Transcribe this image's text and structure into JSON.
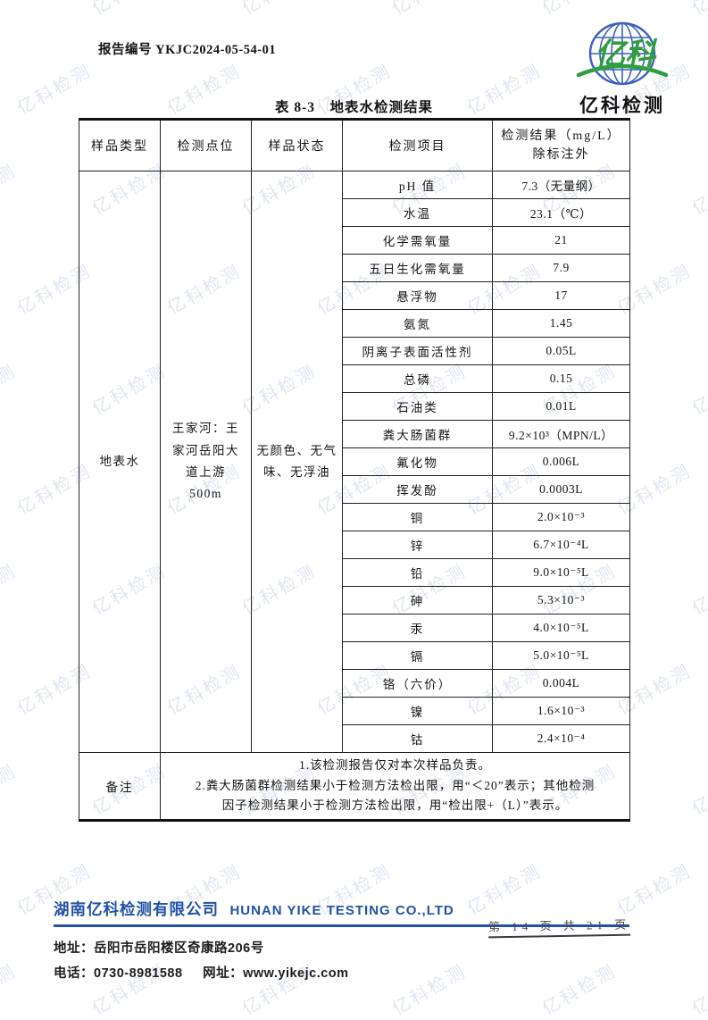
{
  "page": {
    "report_no": "报告编号 YKJC2024-05-54-01",
    "page_stamp": "第 14 页 共 21 页"
  },
  "logo": {
    "globe_script": "亿科",
    "brand_name": "亿科检测",
    "globe_blue": "#3f5fc0",
    "brand_green": "#2f9e3e"
  },
  "watermark": {
    "text": "亿科检测"
  },
  "table": {
    "title": "表 8-3　地表水检测结果",
    "headers": {
      "sample_type": "样品类型",
      "location": "检测点位",
      "state": "样品状态",
      "item": "检测项目",
      "result": "检测结果（mg/L）\n除标注外"
    },
    "sample_type": "地表水",
    "location": "王家河：王\n家河岳阳大\n道上游\n500m",
    "state": "无颜色、无气\n味、无浮油",
    "rows": [
      {
        "item": "pH 值",
        "result": "7.3（无量纲）"
      },
      {
        "item": "水温",
        "result": "23.1（℃）"
      },
      {
        "item": "化学需氧量",
        "result": "21"
      },
      {
        "item": "五日生化需氧量",
        "result": "7.9"
      },
      {
        "item": "悬浮物",
        "result": "17"
      },
      {
        "item": "氨氮",
        "result": "1.45"
      },
      {
        "item": "阴离子表面活性剂",
        "result": "0.05L"
      },
      {
        "item": "总磷",
        "result": "0.15"
      },
      {
        "item": "石油类",
        "result": "0.01L"
      },
      {
        "item": "粪大肠菌群",
        "result": "9.2×10³（MPN/L）"
      },
      {
        "item": "氟化物",
        "result": "0.006L"
      },
      {
        "item": "挥发酚",
        "result": "0.0003L"
      },
      {
        "item": "铜",
        "result": "2.0×10⁻³"
      },
      {
        "item": "锌",
        "result": "6.7×10⁻⁴L"
      },
      {
        "item": "铅",
        "result": "9.0×10⁻⁵L"
      },
      {
        "item": "砷",
        "result": "5.3×10⁻³"
      },
      {
        "item": "汞",
        "result": "4.0×10⁻⁵L"
      },
      {
        "item": "镉",
        "result": "5.0×10⁻⁵L"
      },
      {
        "item": "铬（六价）",
        "result": "0.004L"
      },
      {
        "item": "镍",
        "result": "1.6×10⁻³"
      },
      {
        "item": "钴",
        "result": "2.4×10⁻⁴"
      }
    ],
    "remark_label": "备注",
    "remarks": [
      "1.该检测报告仅对本次样品负责。",
      "2.粪大肠菌群检测结果小于检测方法检出限，用“＜20”表示；其他检测\n因子检测结果小于检测方法检出限，用“检出限+（L）”表示。"
    ]
  },
  "footer": {
    "company_cn": "湖南亿科检测有限公司",
    "company_en": "HUNAN YIKE TESTING CO.,LTD",
    "address": "地址：岳阳市岳阳楼区奇康路206号",
    "phone": "电话：0730-8981588",
    "website": "网址：www.yikejc.com",
    "accent_color": "#2351a5"
  }
}
